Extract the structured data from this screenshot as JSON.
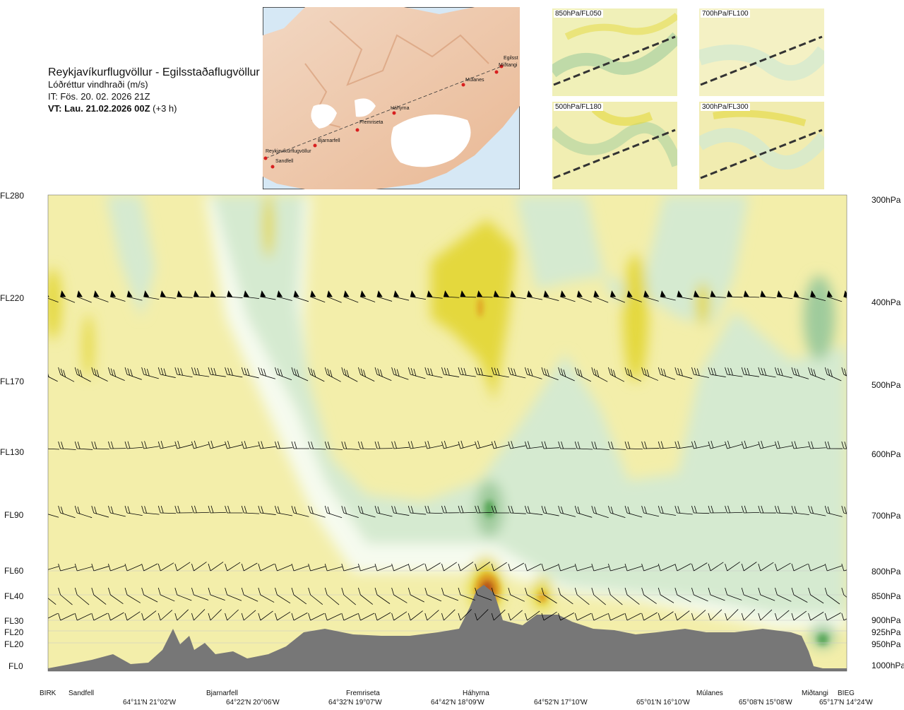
{
  "title": {
    "route": "Reykjavíkurflugvöllur - Egilsstaðaflugvöllur",
    "variable": "Lóðréttur vindhraði (m/s)",
    "issue_time": "IT: Fös. 20. 02. 2026 21Z",
    "valid_time_bold": "VT: Lau. 21.02.2026 00Z",
    "valid_time_offset": " (+3 h)"
  },
  "map": {
    "stations": [
      "Reykjavíkurflugvöllur",
      "Sandfell",
      "Bjarnarfell",
      "Fremriseta",
      "Háhyrna",
      "Múlanes",
      "Egilsst",
      "Miðtangi"
    ]
  },
  "level_panels": [
    {
      "label": "850hPa/FL050"
    },
    {
      "label": "700hPa/FL100"
    },
    {
      "label": "500hPa/FL180"
    },
    {
      "label": "300hPa/FL300"
    }
  ],
  "colors": {
    "terrain": "#777777",
    "updraft_weak": "#f3eeaa",
    "updraft_moderate": "#e4d83c",
    "updraft_strong": "#e0a020",
    "updraft_extreme": "#b8551a",
    "downdraft_weak": "#d5ead0",
    "downdraft_moderate": "#9fcb9c",
    "downdraft_strong": "#5aa75a",
    "neutral": "#f6fbef"
  },
  "chart_data": {
    "type": "cross-section",
    "y_levels": [
      {
        "fl": "FL280",
        "hpa": "300hPa"
      },
      {
        "fl": "FL220",
        "hpa": "400hPa"
      },
      {
        "fl": "FL170",
        "hpa": "500hPa"
      },
      {
        "fl": "FL130",
        "hpa": "600hPa"
      },
      {
        "fl": "FL90",
        "hpa": "700hPa"
      },
      {
        "fl": "FL60",
        "hpa": "800hPa"
      },
      {
        "fl": "FL40",
        "hpa": "850hPa"
      },
      {
        "fl": "FL30",
        "hpa": "900hPa"
      },
      {
        "fl": "FL20",
        "hpa": "925hPa"
      },
      {
        "fl": "FL20",
        "hpa": "950hPa"
      },
      {
        "fl": "FL0",
        "hpa": "1000hPa"
      }
    ],
    "x_places": [
      "BIRK",
      "Sandfell",
      "Bjarnarfell",
      "Fremriseta",
      "Háhyrna",
      "Múlanes",
      "Miðtangi",
      "BIEG"
    ],
    "x_coordinates": [
      "64°11'N 21°02'W",
      "64°22'N 20°06'W",
      "64°32'N 19°07'W",
      "64°42'N 18°09'W",
      "64°52'N 17°10'W",
      "65°01'N 16°10'W",
      "65°08'N 15°08'W",
      "65°17'N 14°24'W"
    ]
  }
}
